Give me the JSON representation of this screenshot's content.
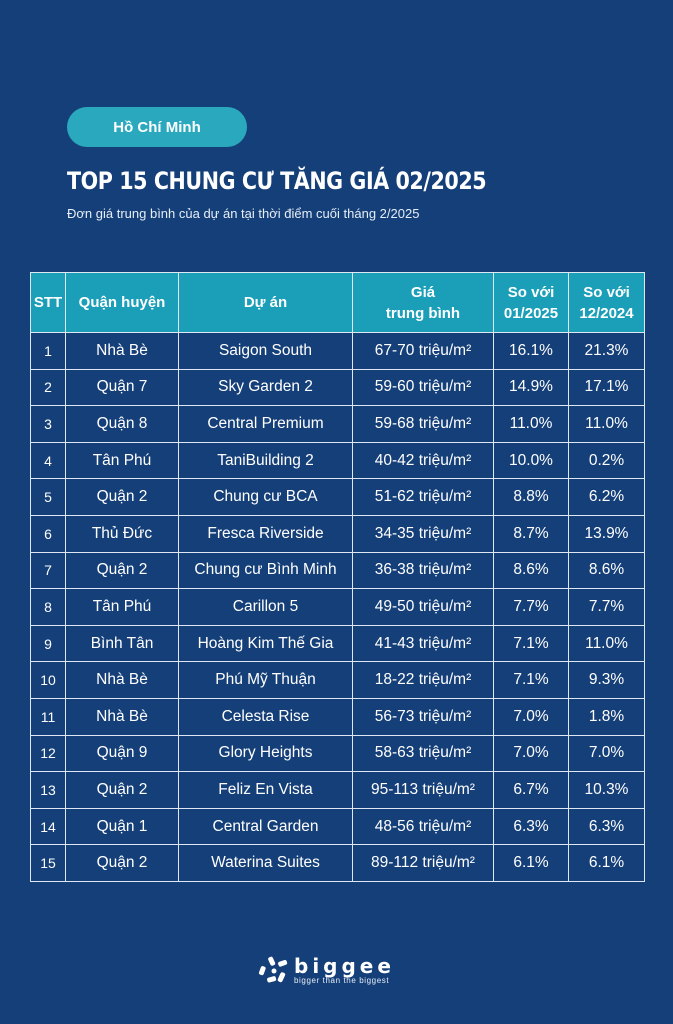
{
  "badge": "Hồ Chí Minh",
  "title": "TOP 15 CHUNG CƯ TĂNG GIÁ 02/2025",
  "subtitle": "Đơn giá trung bình của dự án tại thời điểm cuối tháng 2/2025",
  "table": {
    "headers": {
      "stt": "STT",
      "district": "Quận huyện",
      "project": "Dự án",
      "price_line1": "Giá",
      "price_line2": "trung bình",
      "vs_jan_line1": "So với",
      "vs_jan_line2": "01/2025",
      "vs_dec_line1": "So với",
      "vs_dec_line2": "12/2024"
    },
    "rows": [
      {
        "stt": "1",
        "district": "Nhà Bè",
        "project": "Saigon South",
        "price": "67-70 triệu/m²",
        "vs_jan": "16.1%",
        "vs_dec": "21.3%"
      },
      {
        "stt": "2",
        "district": "Quận 7",
        "project": "Sky Garden 2",
        "price": "59-60 triệu/m²",
        "vs_jan": "14.9%",
        "vs_dec": "17.1%"
      },
      {
        "stt": "3",
        "district": "Quận 8",
        "project": "Central Premium",
        "price": "59-68 triệu/m²",
        "vs_jan": "11.0%",
        "vs_dec": "11.0%"
      },
      {
        "stt": "4",
        "district": "Tân Phú",
        "project": "TaniBuilding 2",
        "price": "40-42 triệu/m²",
        "vs_jan": "10.0%",
        "vs_dec": "0.2%"
      },
      {
        "stt": "5",
        "district": "Quận 2",
        "project": "Chung cư BCA",
        "price": "51-62 triệu/m²",
        "vs_jan": "8.8%",
        "vs_dec": "6.2%"
      },
      {
        "stt": "6",
        "district": "Thủ Đức",
        "project": "Fresca Riverside",
        "price": "34-35 triệu/m²",
        "vs_jan": "8.7%",
        "vs_dec": "13.9%"
      },
      {
        "stt": "7",
        "district": "Quận 2",
        "project": "Chung cư Bình Minh",
        "price": "36-38 triệu/m²",
        "vs_jan": "8.6%",
        "vs_dec": "8.6%"
      },
      {
        "stt": "8",
        "district": "Tân Phú",
        "project": "Carillon 5",
        "price": "49-50 triệu/m²",
        "vs_jan": "7.7%",
        "vs_dec": "7.7%"
      },
      {
        "stt": "9",
        "district": "Bình Tân",
        "project": "Hoàng Kim Thế Gia",
        "price": "41-43 triệu/m²",
        "vs_jan": "7.1%",
        "vs_dec": "11.0%"
      },
      {
        "stt": "10",
        "district": "Nhà Bè",
        "project": "Phú Mỹ Thuận",
        "price": "18-22 triệu/m²",
        "vs_jan": "7.1%",
        "vs_dec": "9.3%"
      },
      {
        "stt": "11",
        "district": "Nhà Bè",
        "project": "Celesta Rise",
        "price": "56-73 triệu/m²",
        "vs_jan": "7.0%",
        "vs_dec": "1.8%"
      },
      {
        "stt": "12",
        "district": "Quận 9",
        "project": "Glory Heights",
        "price": "58-63 triệu/m²",
        "vs_jan": "7.0%",
        "vs_dec": "7.0%"
      },
      {
        "stt": "13",
        "district": "Quận 2",
        "project": "Feliz En Vista",
        "price": "95-113 triệu/m²",
        "vs_jan": "6.7%",
        "vs_dec": "10.3%"
      },
      {
        "stt": "14",
        "district": "Quận 1",
        "project": "Central Garden",
        "price": "48-56 triệu/m²",
        "vs_jan": "6.3%",
        "vs_dec": "6.3%"
      },
      {
        "stt": "15",
        "district": "Quận 2",
        "project": "Waterina Suites",
        "price": "89-112 triệu/m²",
        "vs_jan": "6.1%",
        "vs_dec": "6.1%"
      }
    ]
  },
  "logo": {
    "icon": "biggee-logo-icon",
    "brand": "biggee",
    "tagline": "bigger than the biggest"
  },
  "colors": {
    "background": "#153f78",
    "accent": "#2aa9be",
    "header": "#1b9fb8",
    "border": "#dfe8f2"
  }
}
